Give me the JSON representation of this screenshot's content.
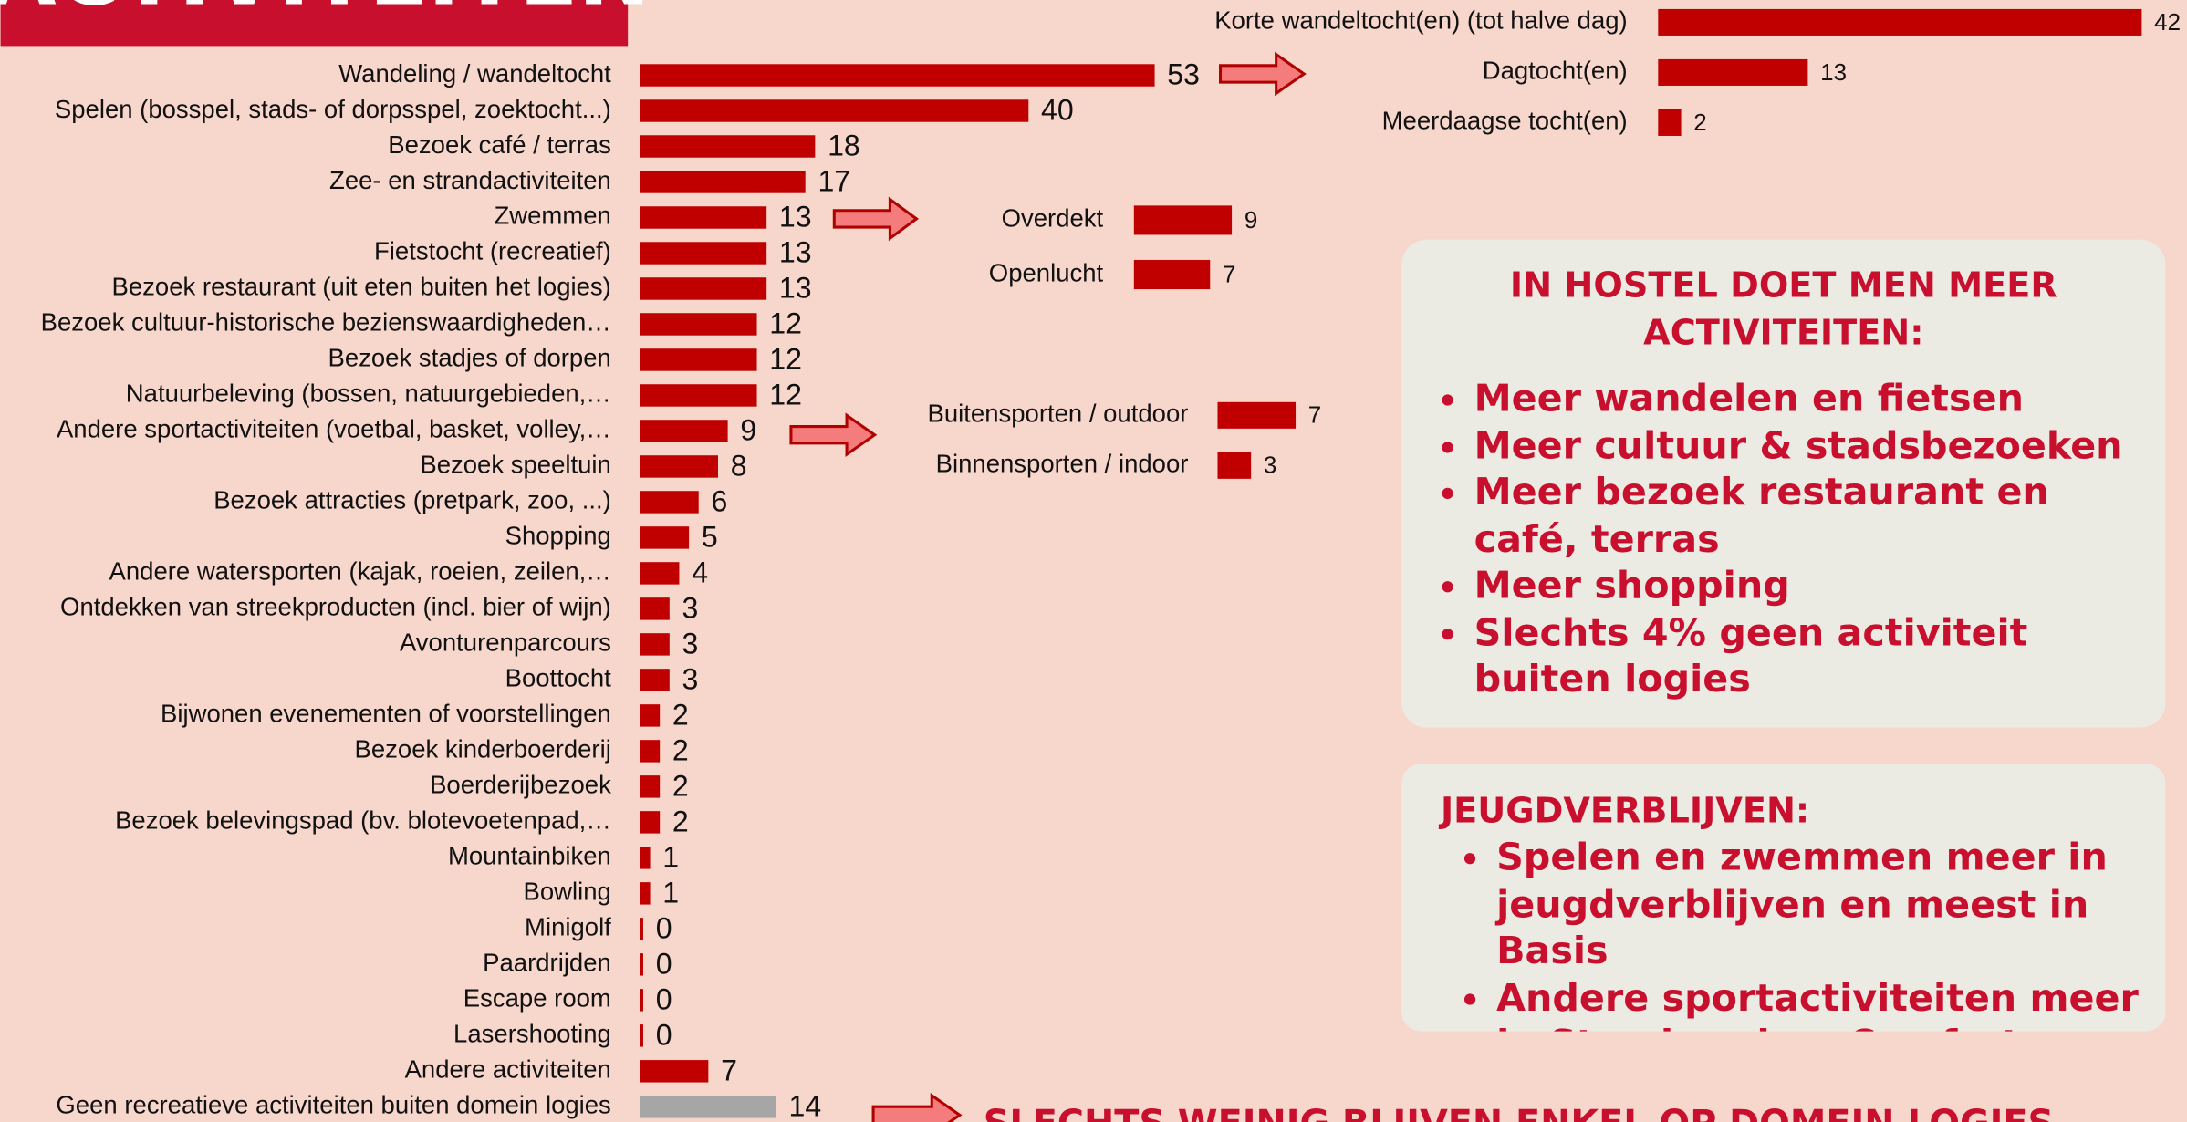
{
  "chart_data": [
    {
      "type": "bar",
      "orientation": "horizontal",
      "categories": [
        "Wandeling / wandeltocht",
        "Spelen (bosspel, stads- of dorpsspel, zoektocht...)",
        "Bezoek café / terras",
        "Zee- en strandactiviteiten",
        "Zwemmen",
        "Fietstocht (recreatief)",
        "Bezoek restaurant (uit eten buiten het logies)",
        "Bezoek cultuur-historische bezienswaardigheden…",
        "Bezoek stadjes of dorpen",
        "Natuurbeleving (bossen, natuurgebieden,…",
        "Andere sportactiviteiten (voetbal, basket, volley,…",
        "Bezoek speeltuin",
        "Bezoek attracties (pretpark, zoo, ...)",
        "Shopping",
        "Andere watersporten (kajak, roeien, zeilen,…",
        "Ontdekken van streekproducten (incl. bier of wijn)",
        "Avonturenparcours",
        "Boottocht",
        "Bijwonen evenementen of voorstellingen",
        "Bezoek kinderboerderij",
        "Boerderijbezoek",
        "Bezoek belevingspad (bv. blotevoetenpad,…",
        "Mountainbiken",
        "Bowling",
        "Minigolf",
        "Paardrijden",
        "Escape room",
        "Lasershooting",
        "Andere activiteiten",
        "Geen recreatieve activiteiten buiten domein logies"
      ],
      "values": [
        53,
        40,
        18,
        17,
        13,
        13,
        13,
        12,
        12,
        12,
        9,
        8,
        6,
        5,
        4,
        3,
        3,
        3,
        2,
        2,
        2,
        2,
        1,
        1,
        0,
        0,
        0,
        0,
        7,
        14
      ],
      "colors": [
        "#c00000",
        "#c00000",
        "#c00000",
        "#c00000",
        "#c00000",
        "#c00000",
        "#c00000",
        "#c00000",
        "#c00000",
        "#c00000",
        "#c00000",
        "#c00000",
        "#c00000",
        "#c00000",
        "#c00000",
        "#c00000",
        "#c00000",
        "#c00000",
        "#c00000",
        "#c00000",
        "#c00000",
        "#c00000",
        "#c00000",
        "#c00000",
        "#c00000",
        "#c00000",
        "#c00000",
        "#c00000",
        "#c00000",
        "#a6a6a6"
      ]
    },
    {
      "type": "bar",
      "orientation": "horizontal",
      "categories": [
        "Korte wandeltocht(en) (tot halve dag)",
        "Dagtocht(en)",
        "Meerdaagse tocht(en)"
      ],
      "values": [
        42,
        13,
        2
      ],
      "color": "#c00000"
    },
    {
      "type": "bar",
      "orientation": "horizontal",
      "categories": [
        "Overdekt",
        "Openlucht"
      ],
      "values": [
        9,
        7
      ],
      "color": "#c00000"
    },
    {
      "type": "bar",
      "orientation": "horizontal",
      "categories": [
        "Buitensporten / outdoor",
        "Binnensporten / indoor"
      ],
      "values": [
        7,
        3
      ],
      "color": "#c00000"
    }
  ],
  "title": "ACTIVITEITEN",
  "boxes": [
    {
      "title": "IN HOSTEL DOET MEN MEER ACTIVITEITEN:",
      "bullets": [
        "Meer wandelen en fietsen",
        "Meer cultuur & stadsbezoeken",
        "Meer bezoek restaurant en café, terras",
        "Meer shopping",
        "Slechts 4% geen activiteit buiten logies"
      ]
    },
    {
      "title": "JEUGDVERBLIJVEN:",
      "bullets": [
        "Spelen en zwemmen meer in jeugdverblijven en meest in Basis",
        "Andere sportactiviteiten meer in Standaard en Comfort"
      ]
    }
  ],
  "footer": "SLECHTS WEINIG BLIJVEN ENKEL OP DOMEIN LOGIES"
}
